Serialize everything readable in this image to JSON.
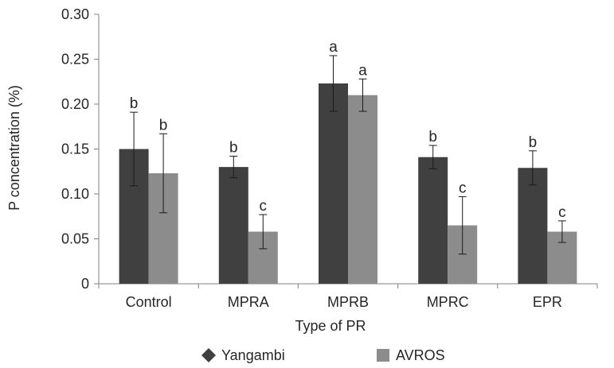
{
  "chart_data": {
    "type": "bar",
    "categories": [
      "Control",
      "MPRA",
      "MPRB",
      "MPRC",
      "EPR"
    ],
    "xlabel": "Type of PR",
    "ylabel": "P concentration (%)",
    "ylim": [
      0,
      0.3
    ],
    "yticks": [
      "0",
      "0.05",
      "0.10",
      "0.15",
      "0.20",
      "0.25",
      "0.30"
    ],
    "ytick_values": [
      0,
      0.05,
      0.1,
      0.15,
      0.2,
      0.25,
      0.3
    ],
    "grid": false,
    "legend_position": "bottom",
    "series": [
      {
        "name": "Yangambi",
        "color": "#404040",
        "legend_marker": "diamond",
        "values": [
          0.15,
          0.13,
          0.223,
          0.141,
          0.129
        ],
        "error": [
          0.041,
          0.012,
          0.031,
          0.013,
          0.019
        ],
        "letters": [
          "b",
          "b",
          "a",
          "b",
          "b"
        ]
      },
      {
        "name": "AVROS",
        "color": "#8c8c8c",
        "legend_marker": "square",
        "values": [
          0.123,
          0.058,
          0.21,
          0.065,
          0.058
        ],
        "error": [
          0.044,
          0.019,
          0.018,
          0.032,
          0.012
        ],
        "letters": [
          "b",
          "c",
          "a",
          "c",
          "c"
        ]
      }
    ]
  }
}
